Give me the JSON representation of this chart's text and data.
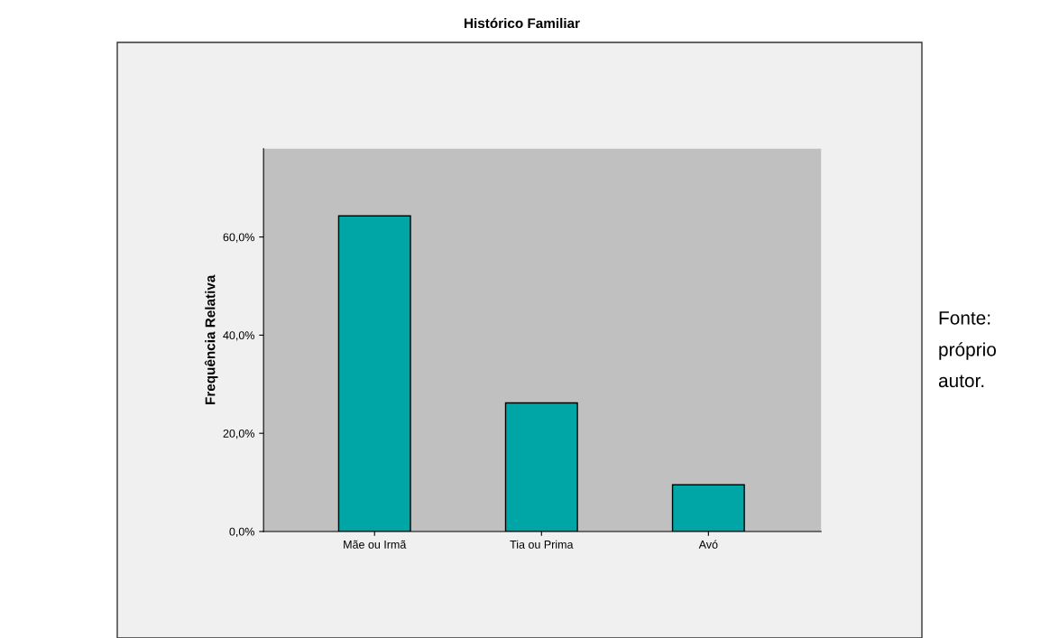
{
  "chart_data": {
    "type": "bar",
    "title": "Histórico Familiar",
    "ylabel": "Frequência Relativa",
    "categories": [
      "Mãe ou Irmã",
      "Tia ou Prima",
      "Avó"
    ],
    "values": [
      64.3,
      26.2,
      9.5
    ],
    "color": "#00a6a6",
    "ylim": [
      0,
      78
    ],
    "yticks": [
      {
        "value": 0,
        "label": "0,0%"
      },
      {
        "value": 20,
        "label": "20,0%"
      },
      {
        "value": 40,
        "label": "40,0%"
      },
      {
        "value": 60,
        "label": "60,0%"
      }
    ],
    "grid": false,
    "annotations": [
      "Fonte: próprio autor."
    ]
  }
}
